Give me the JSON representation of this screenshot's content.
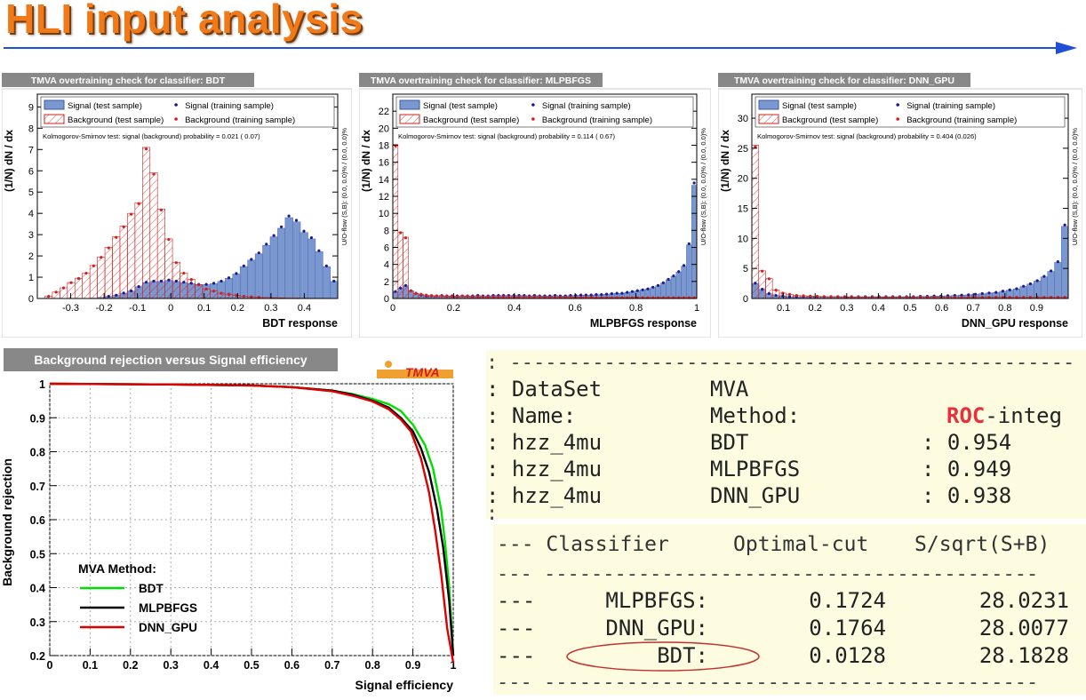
{
  "page_title": "HLI input analysis",
  "colors": {
    "title": "#f07a1a",
    "arrow": "#1f4fd6",
    "signal_fill": "#7b97cf",
    "signal_marker": "#1a1a9a",
    "bkg_hatch": "#d02020",
    "bdt": "#00dd00",
    "mlp": "#000000",
    "dnn": "#dd0000",
    "terminal_bg": "#fdfbe0",
    "roc_highlight": "#e8303a"
  },
  "tmva_logo_text": "TMVA",
  "chart_data": [
    {
      "type": "bar",
      "panel_title": "TMVA overtraining check for classifier: BDT",
      "xlabel": "BDT response",
      "ylabel": "(1/N) dN / dx",
      "xlim": [
        -0.4,
        0.5
      ],
      "ylim": [
        0,
        9.6
      ],
      "xticks": [
        "-0.3",
        "-0.2",
        "-0.1",
        "0",
        "0.1",
        "0.2",
        "0.3",
        "0.4"
      ],
      "yticks": [
        "0",
        "1",
        "2",
        "3",
        "4",
        "5",
        "6",
        "7",
        "8",
        "9"
      ],
      "legend": [
        "Signal (test sample)",
        "Signal (training sample)",
        "Background (test sample)",
        "Background (training sample)"
      ],
      "ks_text": "Kolmogorov-Smirnov test: signal (background) probability = 0.021 ( 0.07)",
      "overflow_text": "U/O-flow (S,B): (0.0, 0.0)% / (0.0, 0.0)%",
      "bin_edges": [
        -0.4,
        0.5
      ],
      "signal": [
        0,
        0,
        0,
        0,
        0,
        0,
        0,
        0.02,
        0.05,
        0.1,
        0.15,
        0.25,
        0.35,
        0.55,
        0.75,
        0.8,
        0.8,
        0.85,
        0.8,
        0.75,
        0.7,
        0.65,
        0.65,
        0.7,
        0.8,
        0.95,
        1.15,
        1.5,
        1.8,
        2.1,
        2.5,
        2.9,
        3.3,
        3.8,
        3.6,
        3.1,
        2.8,
        2.2,
        1.5,
        0.8
      ],
      "background": [
        0,
        0.1,
        0.3,
        0.5,
        0.75,
        0.95,
        1.2,
        1.55,
        1.95,
        2.4,
        2.9,
        3.4,
        4.0,
        4.5,
        7.1,
        5.9,
        4.2,
        2.8,
        1.7,
        1.2,
        0.9,
        0.65,
        0.45,
        0.35,
        0.25,
        0.2,
        0.15,
        0.1,
        0.08,
        0.06,
        0.05,
        0.04,
        0.03,
        0.02,
        0.02,
        0.01,
        0.01,
        0,
        0,
        0
      ]
    },
    {
      "type": "bar",
      "panel_title": "TMVA overtraining check for classifier: MLPBFGS",
      "xlabel": "MLPBFGS response",
      "ylabel": "(1/N) dN / dx",
      "xlim": [
        0,
        1.0
      ],
      "ylim": [
        0,
        24
      ],
      "xticks": [
        "0",
        "0.2",
        "0.4",
        "0.6",
        "0.8",
        "1"
      ],
      "yticks": [
        "0",
        "2",
        "4",
        "6",
        "8",
        "10",
        "12",
        "14",
        "16",
        "18",
        "20",
        "22"
      ],
      "legend": [
        "Signal (test sample)",
        "Signal (training sample)",
        "Background (test sample)",
        "Background (training sample)"
      ],
      "ks_text": "Kolmogorov-Smirnov test: signal (background) probability = 0.114 ( 0.67)",
      "overflow_text": "U/O-flow (S,B): (0.0, 0.0)% / (0.0, 0.0)%",
      "bin_edges": [
        0,
        1.0
      ],
      "signal": [
        0.8,
        1.2,
        1.5,
        0.9,
        0.6,
        0.4,
        0.3,
        0.3,
        0.3,
        0.35,
        0.3,
        0.3,
        0.3,
        0.3,
        0.3,
        0.3,
        0.35,
        0.3,
        0.3,
        0.35,
        0.35,
        0.35,
        0.35,
        0.35,
        0.35,
        0.35,
        0.3,
        0.35,
        0.3,
        0.3,
        0.3,
        0.35,
        0.3,
        0.3,
        0.35,
        0.35,
        0.4,
        0.4,
        0.4,
        0.45,
        0.45,
        0.5,
        0.55,
        0.6,
        0.6,
        0.7,
        0.8,
        0.9,
        1.0,
        1.1,
        1.3,
        1.5,
        1.8,
        2.2,
        2.6,
        3.1,
        3.8,
        6.3,
        13.3
      ],
      "background": [
        18.1,
        7.8,
        7.2,
        0.9,
        0.6,
        0.5,
        0.4,
        0.35,
        0.3,
        0.3,
        0.25,
        0.25,
        0.2,
        0.3,
        0.25,
        0.2,
        0.2,
        0.2,
        0.2,
        0.2,
        0.2,
        0.2,
        0.2,
        0.2,
        0.2,
        0.2,
        0.2,
        0.2,
        0.2,
        0.15,
        0.15,
        0.15,
        0.15,
        0.15,
        0.15,
        0.15,
        0.15,
        0.15,
        0.15,
        0.1,
        0.1,
        0.1,
        0.1,
        0.1,
        0.1,
        0.1,
        0.1,
        0.1,
        0.1,
        0.1,
        0.1,
        0.1,
        0.1,
        0.1,
        0.1,
        0.1,
        0.1,
        0.1,
        0.1
      ]
    },
    {
      "type": "bar",
      "panel_title": "TMVA overtraining check for classifier: DNN_GPU",
      "xlabel": "DNN_GPU response",
      "ylabel": "(1/N) dN / dx",
      "xlim": [
        0,
        1.0
      ],
      "ylim": [
        0,
        34
      ],
      "xticks": [
        "0.1",
        "0.2",
        "0.3",
        "0.4",
        "0.5",
        "0.6",
        "0.7",
        "0.8",
        "0.9"
      ],
      "yticks": [
        "0",
        "5",
        "10",
        "15",
        "20",
        "25",
        "30"
      ],
      "legend": [
        "Signal (test sample)",
        "Signal (training sample)",
        "Background (test sample)",
        "Background (training sample)"
      ],
      "ks_text": "Kolmogorov-Smirnov test: signal (background) probability = 0.404 (0.026)",
      "overflow_text": "U/O-flow (S,B): (0.0, 0.0)% / (0.0, 0.0)%",
      "bin_edges": [
        0,
        1.0
      ],
      "signal": [
        2.5,
        1.5,
        0.8,
        0.5,
        0.4,
        0.3,
        0.3,
        0.3,
        0.3,
        0.3,
        0.3,
        0.3,
        0.3,
        0.3,
        0.3,
        0.3,
        0.3,
        0.3,
        0.3,
        0.3,
        0.3,
        0.3,
        0.3,
        0.3,
        0.35,
        0.35,
        0.4,
        0.4,
        0.45,
        0.5,
        0.55,
        0.6,
        0.7,
        0.8,
        0.9,
        1.0,
        1.2,
        1.4,
        1.6,
        2.0,
        2.4,
        2.9,
        3.6,
        4.5,
        6.0,
        12.0
      ],
      "background": [
        25.5,
        4.6,
        3.3,
        1.4,
        0.9,
        0.7,
        0.5,
        0.45,
        0.4,
        0.35,
        0.3,
        0.3,
        0.3,
        0.25,
        0.25,
        0.25,
        0.2,
        0.2,
        0.2,
        0.2,
        0.2,
        0.2,
        0.2,
        0.2,
        0.2,
        0.2,
        0.2,
        0.2,
        0.2,
        0.2,
        0.2,
        0.2,
        0.2,
        0.2,
        0.2,
        0.2,
        0.2,
        0.2,
        0.2,
        0.2,
        0.2,
        0.2,
        0.2,
        0.2,
        0.2,
        0.2
      ]
    },
    {
      "type": "line",
      "panel_title": "Background rejection versus Signal efficiency",
      "xlabel": "Signal efficiency",
      "ylabel": "Background rejection",
      "xlim": [
        0,
        1
      ],
      "ylim": [
        0.2,
        1
      ],
      "xticks": [
        "0",
        "0.1",
        "0.2",
        "0.3",
        "0.4",
        "0.5",
        "0.6",
        "0.7",
        "0.8",
        "0.9",
        "1"
      ],
      "yticks": [
        "0.2",
        "0.3",
        "0.4",
        "0.5",
        "0.6",
        "0.7",
        "0.8",
        "0.9",
        "1"
      ],
      "legend_title": "MVA Method:",
      "grid": true,
      "series": [
        {
          "name": "BDT",
          "x": [
            0,
            0.3,
            0.5,
            0.6,
            0.7,
            0.75,
            0.8,
            0.84,
            0.87,
            0.9,
            0.93,
            0.95,
            0.97,
            0.98,
            0.99,
            1.0
          ],
          "y": [
            1,
            0.998,
            0.995,
            0.99,
            0.98,
            0.97,
            0.955,
            0.94,
            0.92,
            0.88,
            0.82,
            0.75,
            0.63,
            0.53,
            0.4,
            0.2
          ]
        },
        {
          "name": "MLPBFGS",
          "x": [
            0,
            0.3,
            0.5,
            0.6,
            0.7,
            0.75,
            0.8,
            0.84,
            0.87,
            0.9,
            0.92,
            0.94,
            0.96,
            0.975,
            0.99,
            1.0
          ],
          "y": [
            1,
            0.998,
            0.995,
            0.99,
            0.98,
            0.968,
            0.95,
            0.93,
            0.9,
            0.86,
            0.81,
            0.74,
            0.63,
            0.52,
            0.36,
            0.2
          ]
        },
        {
          "name": "DNN_GPU",
          "x": [
            0,
            0.3,
            0.5,
            0.6,
            0.7,
            0.75,
            0.8,
            0.84,
            0.87,
            0.895,
            0.92,
            0.94,
            0.955,
            0.97,
            0.985,
            1.0
          ],
          "y": [
            1,
            0.998,
            0.995,
            0.99,
            0.978,
            0.965,
            0.948,
            0.925,
            0.895,
            0.86,
            0.78,
            0.68,
            0.57,
            0.44,
            0.28,
            0.18
          ]
        }
      ]
    }
  ],
  "terminal": {
    "dashes": ": ------------------------------------------------",
    "rows": [
      [
        ": DataSet",
        "MVA",
        ""
      ],
      [
        ": Name:",
        "Method:",
        "ROC-integ"
      ],
      [
        ": hzz_4mu",
        "BDT",
        ": 0.954"
      ],
      [
        ": hzz_4mu",
        "MLPBFGS",
        ": 0.949"
      ],
      [
        ": hzz_4mu",
        "DNN_GPU",
        ": 0.938"
      ]
    ],
    "roc_prefix": "ROC",
    "roc_suffix": "-integ",
    "colon": ":",
    "table_dashes": "--- ------------------------------------------",
    "table_header": [
      "--- ",
      "Classifier",
      "Optimal-cut",
      "S/sqrt(S+B)"
    ],
    "table_rows": [
      [
        "---",
        "MLPBFGS:",
        "0.1724",
        "28.0231"
      ],
      [
        "---",
        "DNN_GPU:",
        "0.1764",
        "28.0077"
      ],
      [
        "---",
        "BDT:",
        "0.0128",
        "28.1828"
      ]
    ]
  }
}
